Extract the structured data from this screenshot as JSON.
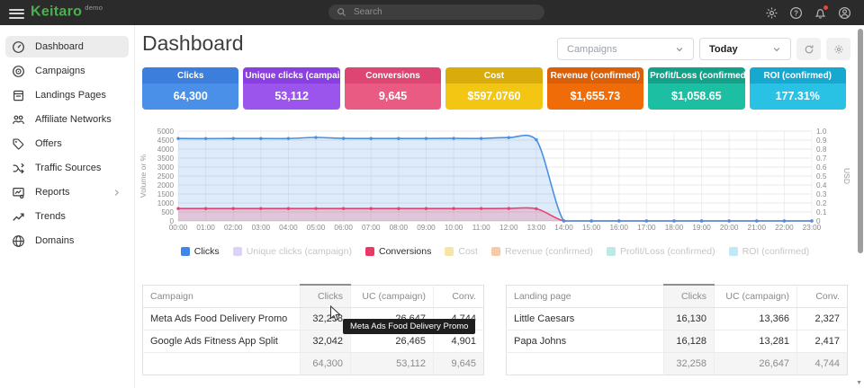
{
  "topbar": {
    "brand": "Keitaro",
    "badge": "demo",
    "search_placeholder": "Search"
  },
  "sidebar": {
    "items": [
      {
        "label": "Dashboard",
        "icon": "gauge",
        "active": true
      },
      {
        "label": "Campaigns",
        "icon": "target"
      },
      {
        "label": "Landings Pages",
        "icon": "page"
      },
      {
        "label": "Affiliate Networks",
        "icon": "people"
      },
      {
        "label": "Offers",
        "icon": "tag"
      },
      {
        "label": "Traffic Sources",
        "icon": "split"
      },
      {
        "label": "Reports",
        "icon": "report",
        "expandable": true
      },
      {
        "label": "Trends",
        "icon": "trend"
      },
      {
        "label": "Domains",
        "icon": "globe"
      }
    ]
  },
  "header": {
    "title": "Dashboard",
    "campaign_filter_placeholder": "Campaigns",
    "date_filter_value": "Today"
  },
  "stat_cards": [
    {
      "label": "Clicks",
      "value": "64,300",
      "header_color": "#3c7edb",
      "body_color": "#4a90e8"
    },
    {
      "label": "Unique clicks (campaign)",
      "value": "53,112",
      "header_color": "#8a3fe0",
      "body_color": "#9b55ec"
    },
    {
      "label": "Conversions",
      "value": "9,645",
      "header_color": "#dd4672",
      "body_color": "#ea5b83"
    },
    {
      "label": "Cost",
      "value": "$597.0760",
      "header_color": "#d9ac0c",
      "body_color": "#f3c613"
    },
    {
      "label": "Revenue (confirmed)",
      "value": "$1,655.73",
      "header_color": "#da5f07",
      "body_color": "#ef6c09"
    },
    {
      "label": "Profit/Loss (confirmed)",
      "value": "$1,058.65",
      "header_color": "#14a18a",
      "body_color": "#1dbfa2"
    },
    {
      "label": "ROI (confirmed)",
      "value": "177.31%",
      "header_color": "#17a8cf",
      "body_color": "#2ac2e4"
    }
  ],
  "chart_data": {
    "type": "line",
    "x": [
      "00:00",
      "01:00",
      "02:00",
      "03:00",
      "04:00",
      "05:00",
      "06:00",
      "07:00",
      "08:00",
      "09:00",
      "10:00",
      "11:00",
      "12:00",
      "13:00",
      "14:00",
      "15:00",
      "16:00",
      "17:00",
      "18:00",
      "19:00",
      "20:00",
      "21:00",
      "22:00",
      "23:00"
    ],
    "left_axis": {
      "label": "Volume or %",
      "min": 0,
      "max": 5000,
      "step": 500
    },
    "right_axis": {
      "label": "USD",
      "min": 0,
      "max": 1.0,
      "step": 0.1
    },
    "grid": true,
    "series": [
      {
        "name": "Clicks",
        "color": "#4a90e2",
        "fill_opacity": 0.18,
        "values": [
          4590,
          4585,
          4590,
          4588,
          4592,
          4648,
          4595,
          4590,
          4589,
          4592,
          4596,
          4591,
          4640,
          4520,
          0,
          0,
          0,
          0,
          0,
          0,
          0,
          0,
          0,
          0
        ]
      },
      {
        "name": "Conversions",
        "color": "#e8436e",
        "fill_opacity": 0.22,
        "values": [
          690,
          688,
          690,
          689,
          690,
          692,
          689,
          690,
          688,
          690,
          689,
          691,
          695,
          680,
          0,
          0,
          0,
          0,
          0,
          0,
          0,
          0,
          0,
          0
        ]
      }
    ],
    "hidden_series": [
      "Unique clicks (campaign)",
      "Cost",
      "Revenue (confirmed)",
      "Profit/Loss (confirmed)",
      "ROI (confirmed)"
    ]
  },
  "legend": [
    {
      "label": "Clicks",
      "color": "#4285e8",
      "active": true
    },
    {
      "label": "Unique clicks (campaign)",
      "color": "#ddd2f8",
      "active": false
    },
    {
      "label": "Conversions",
      "color": "#e83a64",
      "active": true
    },
    {
      "label": "Cost",
      "color": "#f7e5a8",
      "active": false
    },
    {
      "label": "Revenue (confirmed)",
      "color": "#f8cba6",
      "active": false
    },
    {
      "label": "Profit/Loss (confirmed)",
      "color": "#bdeae2",
      "active": false
    },
    {
      "label": "ROI (confirmed)",
      "color": "#bfe8f8",
      "active": false
    }
  ],
  "tables": [
    {
      "columns": [
        "Campaign",
        "Clicks",
        "UC (campaign)",
        "Conv."
      ],
      "sorted_column": 1,
      "rows": [
        [
          "Meta Ads Food Delivery Promo",
          "32,258",
          "26,647",
          "4,744"
        ],
        [
          "Google Ads Fitness App Split",
          "32,042",
          "26,465",
          "4,901"
        ]
      ],
      "totals": [
        "",
        "64,300",
        "53,112",
        "9,645"
      ]
    },
    {
      "columns": [
        "Landing page",
        "Clicks",
        "UC (campaign)",
        "Conv."
      ],
      "sorted_column": 1,
      "rows": [
        [
          "Little Caesars",
          "16,130",
          "13,366",
          "2,327"
        ],
        [
          "Papa Johns",
          "16,128",
          "13,281",
          "2,417"
        ]
      ],
      "totals": [
        "",
        "32,258",
        "26,647",
        "4,744"
      ]
    }
  ],
  "tooltip": {
    "text": "Meta Ads Food Delivery Promo"
  }
}
